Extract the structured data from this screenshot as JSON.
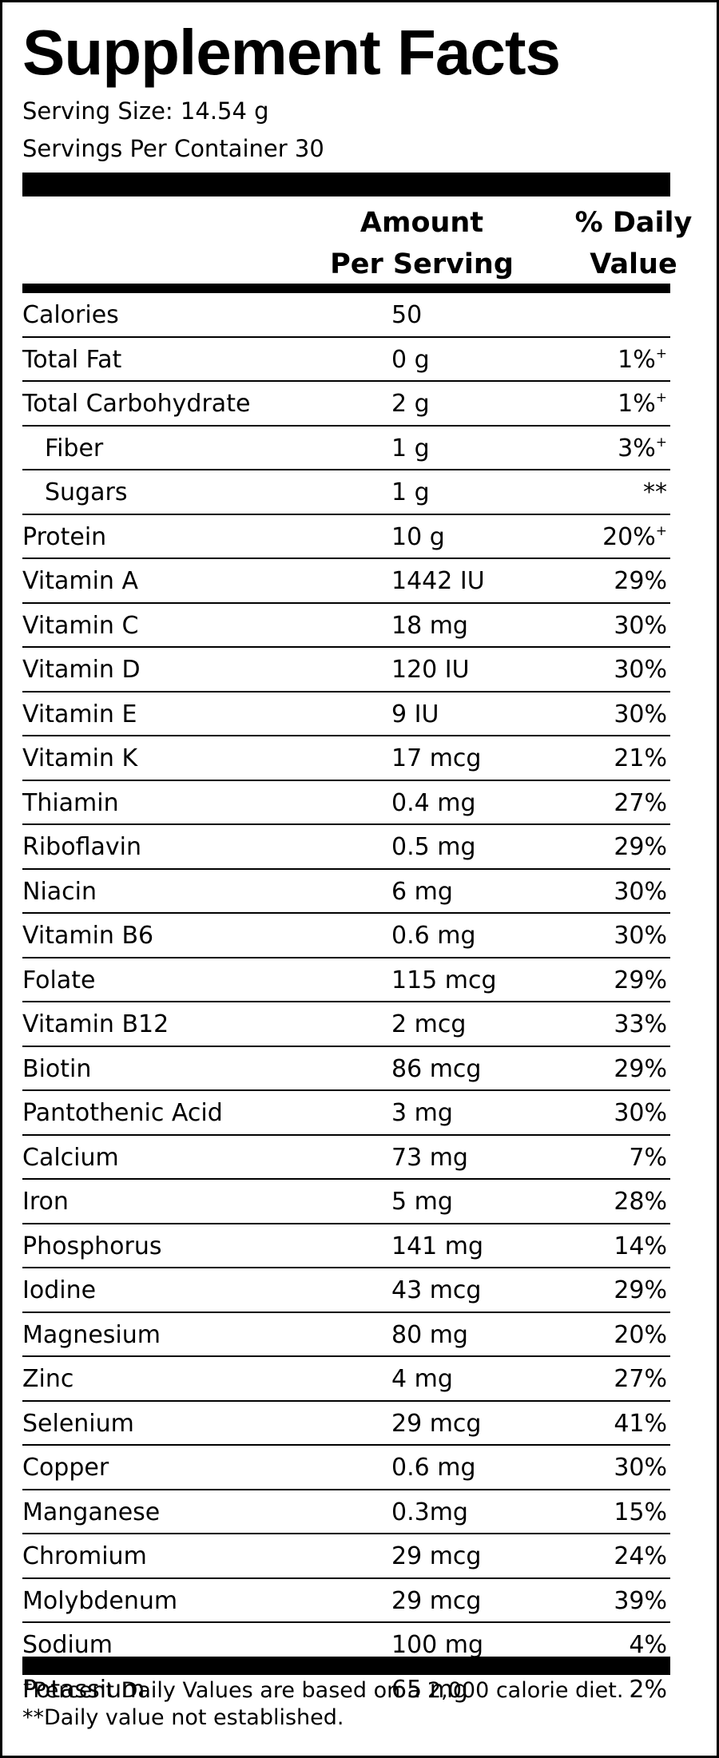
{
  "title": "Supplement Facts",
  "serving_size": "Serving Size: 14.54 g",
  "servings_per_container": "Servings Per Container 30",
  "columns": {
    "amount_line1": "Amount",
    "amount_line2": "Per Serving",
    "dv_line1": "% Daily",
    "dv_line2": "Value"
  },
  "rows": [
    {
      "name": "Calories",
      "amount": "50",
      "dv": "",
      "mark": ""
    },
    {
      "name": "Total Fat",
      "amount": "0 g",
      "dv": "1%",
      "mark": "+"
    },
    {
      "name": "Total Carbohydrate",
      "amount": "2 g",
      "dv": "1%",
      "mark": "+"
    },
    {
      "name": "Fiber",
      "amount": "1 g",
      "dv": "3%",
      "mark": "+",
      "indent": true
    },
    {
      "name": "Sugars",
      "amount": "1 g",
      "dv": "**",
      "mark": "",
      "indent": true
    },
    {
      "name": "Protein",
      "amount": "10 g",
      "dv": "20%",
      "mark": "+"
    },
    {
      "name": "Vitamin A",
      "amount": "1442 IU",
      "dv": "29%",
      "mark": ""
    },
    {
      "name": "Vitamin C",
      "amount": "18 mg",
      "dv": "30%",
      "mark": ""
    },
    {
      "name": "Vitamin D",
      "amount": "120 IU",
      "dv": "30%",
      "mark": ""
    },
    {
      "name": "Vitamin E",
      "amount": "9 IU",
      "dv": "30%",
      "mark": ""
    },
    {
      "name": "Vitamin K",
      "amount": "17 mcg",
      "dv": "21%",
      "mark": ""
    },
    {
      "name": "Thiamin",
      "amount": "0.4 mg",
      "dv": "27%",
      "mark": ""
    },
    {
      "name": "Riboflavin",
      "amount": "0.5 mg",
      "dv": "29%",
      "mark": ""
    },
    {
      "name": "Niacin",
      "amount": "6 mg",
      "dv": "30%",
      "mark": ""
    },
    {
      "name": "Vitamin B6",
      "amount": "0.6 mg",
      "dv": "30%",
      "mark": ""
    },
    {
      "name": "Folate",
      "amount": "115 mcg",
      "dv": "29%",
      "mark": ""
    },
    {
      "name": "Vitamin B12",
      "amount": "2 mcg",
      "dv": "33%",
      "mark": ""
    },
    {
      "name": "Biotin",
      "amount": "86 mcg",
      "dv": "29%",
      "mark": ""
    },
    {
      "name": "Pantothenic Acid",
      "amount": "3 mg",
      "dv": "30%",
      "mark": ""
    },
    {
      "name": "Calcium",
      "amount": "73 mg",
      "dv": "7%",
      "mark": ""
    },
    {
      "name": "Iron",
      "amount": "5 mg",
      "dv": "28%",
      "mark": ""
    },
    {
      "name": "Phosphorus",
      "amount": "141 mg",
      "dv": "14%",
      "mark": ""
    },
    {
      "name": "Iodine",
      "amount": "43 mcg",
      "dv": "29%",
      "mark": ""
    },
    {
      "name": "Magnesium",
      "amount": "80 mg",
      "dv": "20%",
      "mark": ""
    },
    {
      "name": "Zinc",
      "amount": "4 mg",
      "dv": "27%",
      "mark": ""
    },
    {
      "name": "Selenium",
      "amount": "29 mcg",
      "dv": "41%",
      "mark": ""
    },
    {
      "name": "Copper",
      "amount": "0.6 mg",
      "dv": "30%",
      "mark": ""
    },
    {
      "name": "Manganese",
      "amount": "0.3mg",
      "dv": "15%",
      "mark": ""
    },
    {
      "name": "Chromium",
      "amount": "29 mcg",
      "dv": "24%",
      "mark": ""
    },
    {
      "name": "Molybdenum",
      "amount": "29 mcg",
      "dv": "39%",
      "mark": ""
    },
    {
      "name": "Sodium",
      "amount": "100 mg",
      "dv": "4%",
      "mark": ""
    },
    {
      "name": "Potassium",
      "amount": "65 mg",
      "dv": "2%",
      "mark": ""
    }
  ],
  "footnotes": {
    "dv_mark": "+",
    "dv_note": "Percent Daily Values are based on a 2,000 calorie diet.",
    "not_established": "**Daily value not established."
  }
}
